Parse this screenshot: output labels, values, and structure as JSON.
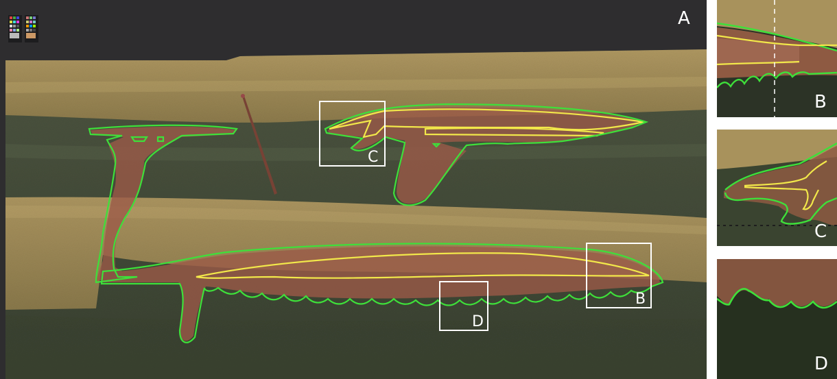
{
  "panels": {
    "main": {
      "label": "A"
    },
    "inset_b": {
      "label": "B"
    },
    "inset_c": {
      "label": "C"
    },
    "inset_d": {
      "label": "D"
    }
  },
  "boxes": {
    "b": "B",
    "c": "C",
    "d": "D"
  },
  "colors": {
    "background_dark": "#2e2d2f",
    "sand_layer": "#a8925c",
    "soil_layer": "#4a4f3a",
    "stain": "#9c5a48",
    "outline_outer": "#3ee03a",
    "outline_inner": "#f2e84a",
    "box_frame": "#ffffff"
  }
}
